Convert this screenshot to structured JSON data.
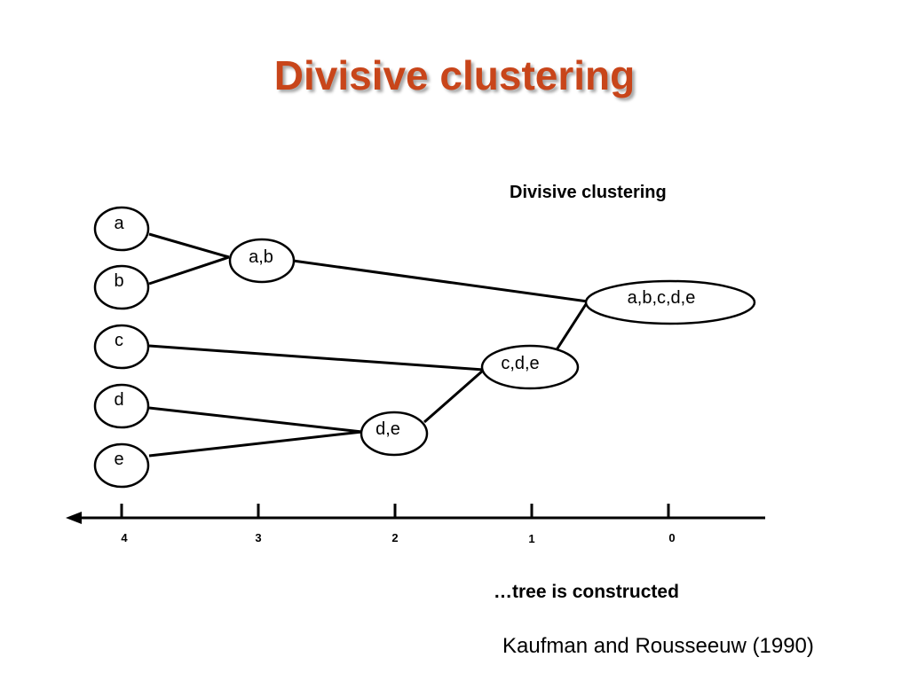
{
  "slide": {
    "title": "Divisive clustering",
    "title_color": "#c8451a"
  },
  "diagram": {
    "title": "Divisive clustering",
    "leaves": [
      "a",
      "b",
      "c",
      "d",
      "e"
    ],
    "clusters": [
      "a,b",
      "c,d,e",
      "d,e",
      "a,b,c,d,e"
    ],
    "axis": {
      "ticks": [
        "4",
        "3",
        "2",
        "1",
        "0"
      ],
      "direction": "right-to-left arrow"
    }
  },
  "caption": "…tree is constructed",
  "citation": "Kaufman and Rousseeuw (1990)"
}
